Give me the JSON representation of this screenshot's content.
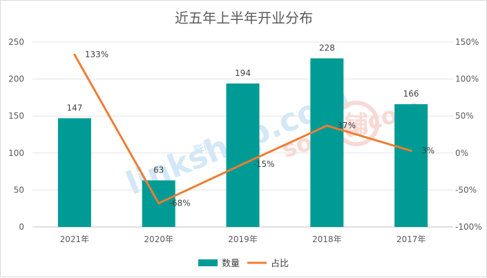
{
  "chart_data": {
    "type": "bar",
    "title": "近五年上半年开业分布",
    "categories": [
      "2021年",
      "2020年",
      "2019年",
      "2018年",
      "2017年"
    ],
    "series": [
      {
        "name": "数量",
        "type": "bar",
        "axis": "left",
        "color": "#009b95",
        "values": [
          147,
          63,
          194,
          228,
          166
        ],
        "labels": [
          "147",
          "63",
          "194",
          "228",
          "166"
        ]
      },
      {
        "name": "占比",
        "type": "line",
        "axis": "right",
        "color": "#ed7d31",
        "values": [
          133,
          -68,
          -15,
          37,
          3
        ],
        "labels": [
          "133%",
          "-68%",
          "-15%",
          "37%",
          "3%"
        ]
      }
    ],
    "y_left": {
      "min": 0,
      "max": 250,
      "step": 50,
      "ticks": [
        "0",
        "50",
        "100",
        "150",
        "200",
        "250"
      ]
    },
    "y_right": {
      "min": -100,
      "max": 150,
      "step": 50,
      "unit": "%",
      "ticks": [
        "-100%",
        "-50%",
        "0%",
        "50%",
        "100%",
        "150%"
      ]
    },
    "legend_position": "bottom",
    "grid": true,
    "watermark": [
      "linkshop.com",
      "联商",
      "soupu.com",
      "铺"
    ]
  }
}
